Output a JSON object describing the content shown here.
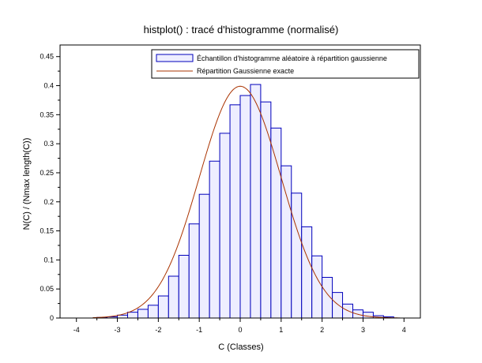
{
  "chart_data": {
    "type": "bar",
    "title": "histplot() : tracé d'histogramme (normalisé)",
    "xlabel": "C (Classes)",
    "ylabel": "N(C) / (Nmax length(C))",
    "xlim": [
      -4.4,
      4.4
    ],
    "ylim": [
      0,
      0.47
    ],
    "x_ticks": [
      -4,
      -3,
      -2,
      -1,
      0,
      1,
      2,
      3,
      4
    ],
    "y_ticks": [
      0,
      0.05,
      0.1,
      0.15,
      0.2,
      0.25,
      0.3,
      0.35,
      0.4,
      0.45
    ],
    "grid": false,
    "legend_position": "top-right",
    "bar_width": 0.25,
    "histogram": {
      "name": "Échantillon d'histogramme aléatoire à répartition gaussienne",
      "bin_starts": [
        -3.5,
        -3.25,
        -3.0,
        -2.75,
        -2.5,
        -2.25,
        -2.0,
        -1.75,
        -1.5,
        -1.25,
        -1.0,
        -0.75,
        -0.5,
        -0.25,
        0.0,
        0.25,
        0.5,
        0.75,
        1.0,
        1.25,
        1.5,
        1.75,
        2.0,
        2.25,
        2.5,
        2.75,
        3.0,
        3.25,
        3.5
      ],
      "values": [
        0.001,
        0.002,
        0.005,
        0.01,
        0.015,
        0.022,
        0.038,
        0.072,
        0.108,
        0.162,
        0.213,
        0.27,
        0.318,
        0.367,
        0.383,
        0.402,
        0.372,
        0.327,
        0.262,
        0.215,
        0.157,
        0.107,
        0.07,
        0.044,
        0.024,
        0.014,
        0.01,
        0.004,
        0.002
      ],
      "fill_color": "#eeeeff",
      "edge_color": "#0000bb"
    },
    "curve": {
      "name": "Répartition Gaussienne exacte",
      "function": "gaussian",
      "mean": 0,
      "std": 1,
      "x_range": [
        -3.6,
        3.9
      ],
      "color": "#aa3300"
    }
  }
}
